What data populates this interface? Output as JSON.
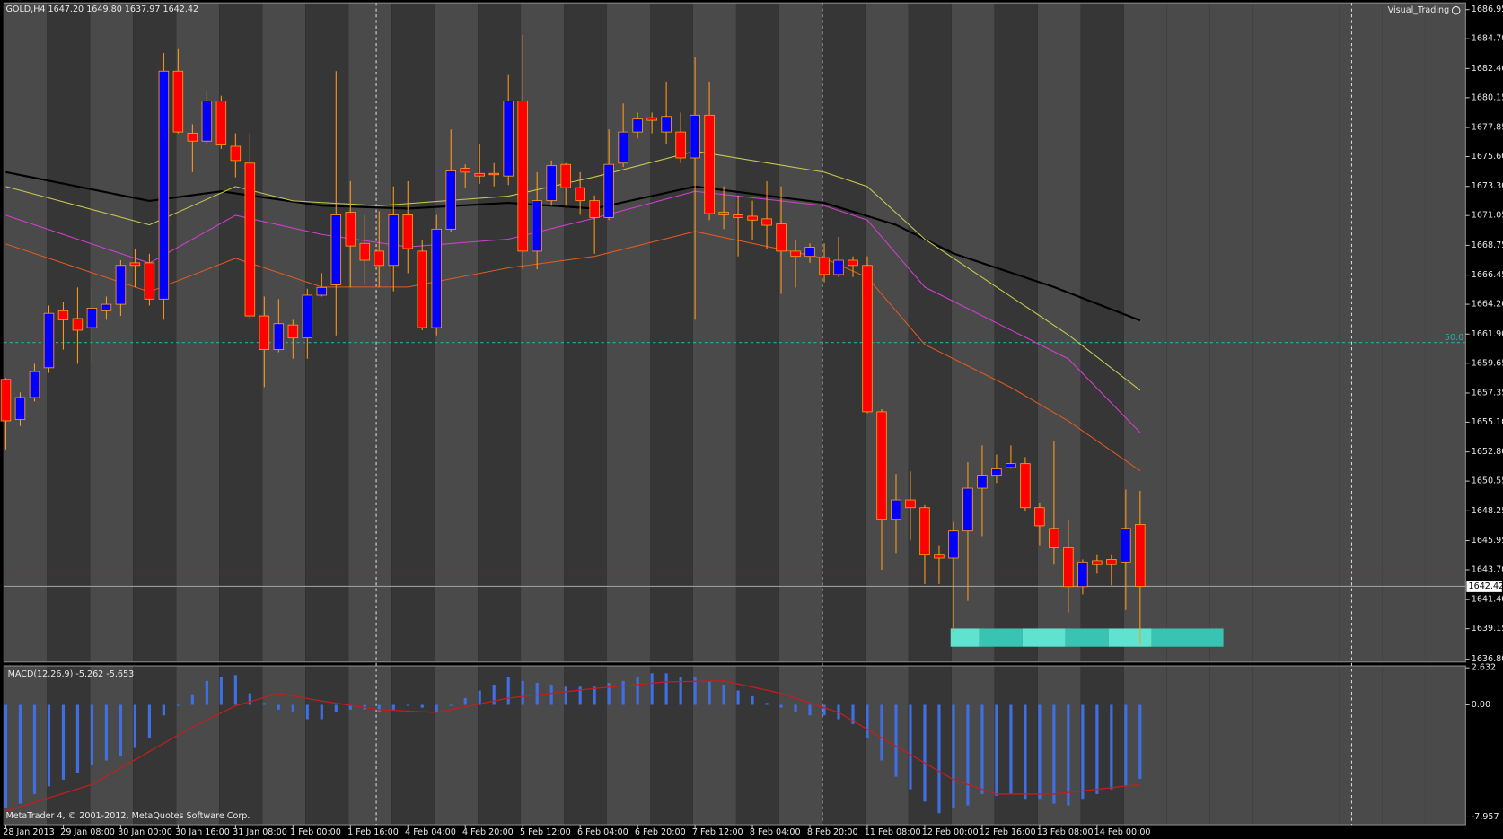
{
  "chart_data": {
    "type": "candlestick",
    "header": "GOLD,H4  1647.20 1649.80 1637.97 1642.42",
    "indicator_title": "Visual_Trading",
    "copyright": "MetaTrader 4, © 2001-2012, MetaQuotes Software Corp.",
    "colors": {
      "up": "#0000ff",
      "down": "#ff0000",
      "wick": "#ff9a1a",
      "macd": "#3f6fe0",
      "signal": "#c41e1e"
    },
    "ylim": [
      1636.58,
      1687.47
    ],
    "yticks": [
      1686.95,
      {
        "value": 1684.7,
        "label": "1684.70"
      },
      {
        "value": 1682.4,
        "label": "1682.40"
      },
      1680.15,
      1677.85,
      {
        "value": 1675.6,
        "label": "1675.60"
      },
      {
        "value": 1673.3,
        "label": "1673.30"
      },
      1671.05,
      1668.75,
      1666.45,
      {
        "value": 1664.2,
        "label": "1664.20"
      },
      {
        "value": 1661.9,
        "label": "1661.90"
      },
      1659.65,
      1657.35,
      {
        "value": 1655.1,
        "label": "1655.10"
      },
      {
        "value": 1652.8,
        "label": "1652.80"
      },
      1650.55,
      1648.25,
      1645.95,
      {
        "value": 1643.7,
        "label": "1643.70"
      },
      {
        "value": 1641.4,
        "label": "1641.40"
      },
      1639.15,
      {
        "value": 1636.8,
        "label": "1636.80"
      }
    ],
    "candles": [
      [
        1658.4,
        1658.5,
        1653.0,
        1655.2
      ],
      [
        1655.3,
        1657.4,
        1654.8,
        1657.0
      ],
      [
        1657.0,
        1659.6,
        1656.7,
        1659.0
      ],
      [
        1659.3,
        1664.1,
        1658.9,
        1663.5
      ],
      [
        1663.7,
        1664.4,
        1660.7,
        1663.0
      ],
      [
        1663.1,
        1665.5,
        1659.6,
        1662.2
      ],
      [
        1662.4,
        1665.5,
        1659.8,
        1663.9
      ],
      [
        1663.7,
        1664.8,
        1663.0,
        1664.2
      ],
      [
        1664.2,
        1667.6,
        1663.3,
        1667.2
      ],
      [
        1667.4,
        1668.5,
        1665.5,
        1667.2
      ],
      [
        1667.4,
        1668.1,
        1664.1,
        1664.6
      ],
      [
        1664.6,
        1683.6,
        1663.0,
        1682.2
      ],
      [
        1682.2,
        1683.9,
        1677.4,
        1677.5
      ],
      [
        1677.4,
        1678.1,
        1674.4,
        1676.8
      ],
      [
        1676.8,
        1680.7,
        1676.6,
        1679.9
      ],
      [
        1679.9,
        1680.3,
        1676.2,
        1676.5
      ],
      [
        1676.4,
        1677.4,
        1674.0,
        1675.3
      ],
      [
        1675.1,
        1677.4,
        1663.0,
        1663.3
      ],
      [
        1663.3,
        1664.8,
        1657.8,
        1660.7
      ],
      [
        1660.7,
        1664.6,
        1660.5,
        1662.7
      ],
      [
        1662.6,
        1663.0,
        1660.0,
        1661.6
      ],
      [
        1661.6,
        1665.4,
        1660.0,
        1664.9
      ],
      [
        1664.9,
        1666.6,
        1664.8,
        1665.5
      ],
      [
        1665.7,
        1682.2,
        1661.8,
        1671.1
      ],
      [
        1671.3,
        1673.7,
        1665.5,
        1668.7
      ],
      [
        1668.9,
        1671.1,
        1665.7,
        1667.6
      ],
      [
        1668.3,
        1671.4,
        1665.5,
        1667.2
      ],
      [
        1667.2,
        1673.3,
        1665.2,
        1671.1
      ],
      [
        1671.1,
        1673.7,
        1666.6,
        1668.5
      ],
      [
        1668.3,
        1669.2,
        1662.2,
        1662.4
      ],
      [
        1662.4,
        1671.1,
        1661.8,
        1670.0
      ],
      [
        1670.0,
        1677.7,
        1669.8,
        1674.5
      ],
      [
        1674.7,
        1675.0,
        1673.2,
        1674.4
      ],
      [
        1674.3,
        1676.6,
        1673.5,
        1674.1
      ],
      [
        1674.3,
        1675.1,
        1673.3,
        1674.2
      ],
      [
        1674.1,
        1681.9,
        1673.4,
        1679.9
      ],
      [
        1679.9,
        1685.0,
        1666.9,
        1668.3
      ],
      [
        1668.3,
        1674.4,
        1666.9,
        1672.2
      ],
      [
        1672.2,
        1675.3,
        1671.8,
        1674.9
      ],
      [
        1675.0,
        1675.1,
        1671.8,
        1673.2
      ],
      [
        1673.2,
        1674.4,
        1671.1,
        1672.2
      ],
      [
        1672.2,
        1672.6,
        1668.1,
        1670.9
      ],
      [
        1670.9,
        1677.7,
        1670.7,
        1675.0
      ],
      [
        1675.1,
        1679.7,
        1674.8,
        1677.5
      ],
      [
        1677.5,
        1679.0,
        1677.0,
        1678.5
      ],
      [
        1678.6,
        1679.0,
        1677.4,
        1678.4
      ],
      [
        1677.5,
        1681.4,
        1676.6,
        1678.7
      ],
      [
        1677.5,
        1679.0,
        1675.1,
        1675.5
      ],
      [
        1675.5,
        1683.3,
        1663.0,
        1678.8
      ],
      [
        1678.8,
        1681.4,
        1670.7,
        1671.2
      ],
      [
        1671.3,
        1673.3,
        1670.0,
        1671.1
      ],
      [
        1671.1,
        1672.6,
        1667.9,
        1670.9
      ],
      [
        1671.0,
        1672.2,
        1669.2,
        1670.7
      ],
      [
        1670.8,
        1673.7,
        1668.5,
        1670.3
      ],
      [
        1670.4,
        1673.3,
        1665.0,
        1668.3
      ],
      [
        1668.3,
        1669.2,
        1665.5,
        1667.9
      ],
      [
        1667.9,
        1668.9,
        1667.4,
        1668.6
      ],
      [
        1667.8,
        1668.9,
        1665.9,
        1666.5
      ],
      [
        1666.5,
        1669.4,
        1666.3,
        1667.6
      ],
      [
        1667.6,
        1667.9,
        1666.3,
        1667.2
      ],
      [
        1667.2,
        1667.9,
        1655.8,
        1655.9
      ],
      [
        1655.9,
        1656.1,
        1643.7,
        1647.6
      ],
      [
        1647.6,
        1651.1,
        1645.0,
        1649.1
      ],
      [
        1649.1,
        1651.3,
        1646.0,
        1648.5
      ],
      [
        1648.5,
        1648.7,
        1642.6,
        1644.9
      ],
      [
        1644.9,
        1645.6,
        1642.6,
        1644.6
      ],
      [
        1644.6,
        1647.4,
        1638.9,
        1646.7
      ],
      [
        1646.7,
        1652.0,
        1641.3,
        1650.0
      ],
      [
        1650.0,
        1653.3,
        1646.3,
        1651.0
      ],
      [
        1651.0,
        1652.6,
        1650.4,
        1651.5
      ],
      [
        1651.6,
        1653.3,
        1651.5,
        1651.9
      ],
      [
        1651.9,
        1652.4,
        1648.2,
        1648.5
      ],
      [
        1648.5,
        1648.9,
        1645.6,
        1647.1
      ],
      [
        1646.9,
        1653.6,
        1644.1,
        1645.4
      ],
      [
        1645.4,
        1647.6,
        1640.4,
        1642.4
      ],
      [
        1642.4,
        1644.5,
        1641.8,
        1644.3
      ],
      [
        1644.4,
        1644.9,
        1643.4,
        1644.1
      ],
      [
        1644.5,
        1644.9,
        1642.5,
        1644.1
      ],
      [
        1644.3,
        1649.9,
        1640.6,
        1646.9
      ],
      [
        1647.2,
        1649.8,
        1637.97,
        1642.42
      ]
    ],
    "moving_averages": [
      {
        "color": "#000000",
        "width": 2,
        "x": [
          0,
          10,
          15,
          22,
          28,
          35,
          41,
          48,
          57,
          62,
          66,
          73,
          79
        ],
        "values": [
          1674.4,
          1672.18,
          1672.92,
          1671.81,
          1671.59,
          1672.03,
          1671.59,
          1673.29,
          1672.03,
          1670.33,
          1668.12,
          1665.53,
          1662.95
        ]
      },
      {
        "color": "#c8c850",
        "width": 1,
        "x": [
          0,
          10,
          16,
          20,
          26,
          35,
          41,
          48,
          57,
          60,
          64,
          70,
          74,
          79
        ],
        "values": [
          1673.29,
          1670.33,
          1673.29,
          1672.18,
          1671.81,
          1672.55,
          1674.03,
          1676.02,
          1674.4,
          1673.29,
          1669.23,
          1664.79,
          1661.84,
          1657.56
        ]
      },
      {
        "color": "#d040d0",
        "width": 1,
        "x": [
          0,
          10,
          16,
          22,
          28,
          35,
          41,
          48,
          57,
          60,
          64,
          70,
          74,
          79
        ],
        "values": [
          1671.07,
          1667.38,
          1671.07,
          1669.59,
          1668.63,
          1669.23,
          1670.85,
          1672.92,
          1671.81,
          1670.7,
          1665.53,
          1662.21,
          1659.99,
          1654.3
        ]
      },
      {
        "color": "#e05a20",
        "width": 1,
        "x": [
          0,
          10,
          16,
          22,
          28,
          35,
          41,
          48,
          57,
          60,
          64,
          70,
          74,
          79
        ],
        "values": [
          1668.86,
          1665.16,
          1667.75,
          1665.53,
          1665.53,
          1667.01,
          1667.9,
          1669.82,
          1667.75,
          1666.27,
          1661.1,
          1657.78,
          1655.19,
          1651.35
        ]
      }
    ],
    "levels": [
      {
        "value": 1643.52,
        "color": "#d01010"
      },
      {
        "value": 1642.42,
        "color": "#9a9a9a",
        "label": "1642.42"
      },
      {
        "value": 1661.25,
        "color": "#20b0b0",
        "dashed": true,
        "label": "50.0"
      }
    ],
    "time_labels": [
      "28 Jan 2013",
      "29 Jan 08:00",
      "30 Jan 00:00",
      "30 Jan 16:00",
      "31 Jan 08:00",
      "1 Feb 00:00",
      "1 Feb 16:00",
      "4 Feb 04:00",
      "4 Feb 20:00",
      "5 Feb 12:00",
      "6 Feb 04:00",
      "6 Feb 20:00",
      "7 Feb 12:00",
      "8 Feb 04:00",
      "8 Feb 20:00",
      "11 Feb 08:00",
      "12 Feb 00:00",
      "12 Feb 16:00",
      "13 Feb 08:00",
      "14 Feb 00:00"
    ],
    "macd": {
      "title": "MACD(12,26,9) -5.262 -5.653",
      "ylim": [
        -7.957,
        2.632
      ],
      "yticks": [
        2.632,
        {
          "value": 0,
          "label": "0.00"
        },
        -7.957
      ],
      "values": [
        -7.35,
        -7.01,
        -6.33,
        -5.78,
        -5.31,
        -4.83,
        -4.29,
        -3.95,
        -3.61,
        -3.06,
        -2.38,
        -0.75,
        -0.07,
        0.75,
        1.7,
        1.97,
        2.11,
        0.82,
        0.14,
        -0.34,
        -0.54,
        -1.02,
        -1.02,
        -0.54,
        -0.34,
        -0.34,
        -0.54,
        -0.34,
        -0.07,
        -0.2,
        -0.54,
        -0.07,
        0.48,
        1.02,
        1.43,
        1.97,
        1.7,
        1.56,
        1.43,
        1.29,
        1.29,
        1.29,
        1.56,
        1.7,
        1.97,
        2.24,
        2.24,
        1.97,
        1.97,
        1.7,
        1.43,
        1.02,
        0.61,
        0.14,
        -0.2,
        -0.54,
        -0.75,
        -0.75,
        -1.02,
        -1.36,
        -2.38,
        -3.95,
        -5.1,
        -5.99,
        -6.87,
        -7.69,
        -7.35,
        -7.14,
        -6.33,
        -6.46,
        -6.33,
        -6.67,
        -6.67,
        -7.01,
        -7.14,
        -6.67,
        -6.33,
        -5.99,
        -5.78,
        -5.262
      ],
      "signal_x": [
        0,
        6,
        13,
        16,
        19,
        22,
        26,
        30,
        35,
        41,
        46,
        50,
        54,
        58,
        62,
        66,
        69,
        73,
        79
      ],
      "signal": [
        -7.55,
        -5.65,
        -1.56,
        -0.07,
        0.82,
        0.27,
        -0.34,
        -0.54,
        0.48,
        1.16,
        1.63,
        1.7,
        0.82,
        -0.54,
        -2.93,
        -5.31,
        -6.33,
        -6.33,
        -5.653
      ]
    }
  }
}
